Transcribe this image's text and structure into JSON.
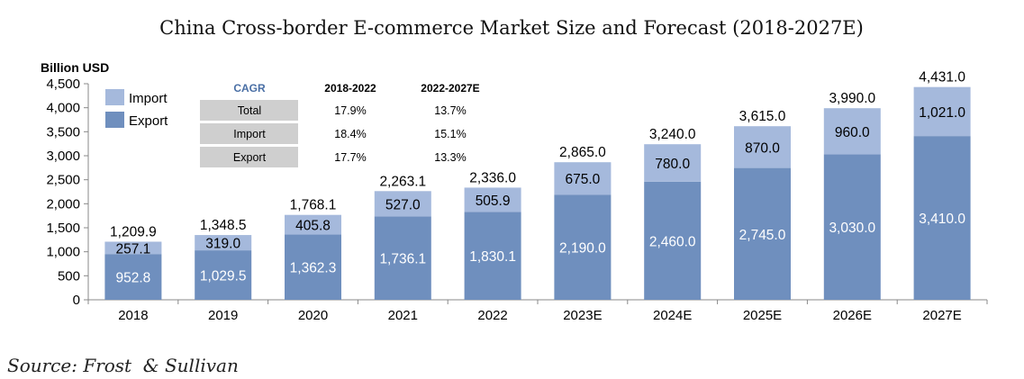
{
  "chart_data": {
    "type": "bar",
    "stacked": true,
    "title": "China Cross-border E-commerce Market Size and Forecast (2018-2027E)",
    "ylabel": "Billion USD",
    "ylim": [
      0,
      4500
    ],
    "yticks": [
      "0",
      "500",
      "1,000",
      "1,500",
      "2,000",
      "2,500",
      "3,000",
      "3,500",
      "4,000",
      "4,500"
    ],
    "categories": [
      "2018",
      "2019",
      "2020",
      "2021",
      "2022",
      "2023E",
      "2024E",
      "2025E",
      "2026E",
      "2027E"
    ],
    "series": [
      {
        "name": "Export",
        "color": "#6f8fbe",
        "values": [
          952.8,
          1029.5,
          1362.3,
          1736.1,
          1830.1,
          2190.0,
          2460.0,
          2745.0,
          3030.0,
          3410.0
        ],
        "labels": [
          "952.8",
          "1,029.5",
          "1,362.3",
          "1,736.1",
          "1,830.1",
          "2,190.0",
          "2,460.0",
          "2,745.0",
          "3,030.0",
          "3,410.0"
        ]
      },
      {
        "name": "Import",
        "color": "#a5b9dc",
        "values": [
          257.1,
          319.0,
          405.8,
          527.0,
          505.9,
          675.0,
          780.0,
          870.0,
          960.0,
          1021.0
        ],
        "labels": [
          "257.1",
          "319.0",
          "405.8",
          "527.0",
          "505.9",
          "675.0",
          "780.0",
          "870.0",
          "960.0",
          "1,021.0"
        ]
      }
    ],
    "totals": [
      1209.9,
      1348.5,
      1768.1,
      2263.1,
      2336.0,
      2865.0,
      3240.0,
      3615.0,
      3990.0,
      4431.0
    ],
    "total_labels": [
      "1,209.9",
      "1,348.5",
      "1,768.1",
      "2,263.1",
      "2,336.0",
      "2,865.0",
      "3,240.0",
      "3,615.0",
      "3,990.0",
      "4,431.0"
    ],
    "legend": {
      "position": "top-left",
      "entries": [
        "Import",
        "Export"
      ]
    },
    "grid": false,
    "cagr_table": {
      "title": "CAGR",
      "columns": [
        "2018-2022",
        "2022-2027E"
      ],
      "rows": [
        {
          "label": "Total",
          "values": [
            "17.9%",
            "13.7%"
          ]
        },
        {
          "label": "Import",
          "values": [
            "18.4%",
            "15.1%"
          ]
        },
        {
          "label": "Export",
          "values": [
            "17.7%",
            "13.3%"
          ]
        }
      ]
    },
    "source": "Source: Frost  & Sullivan"
  }
}
